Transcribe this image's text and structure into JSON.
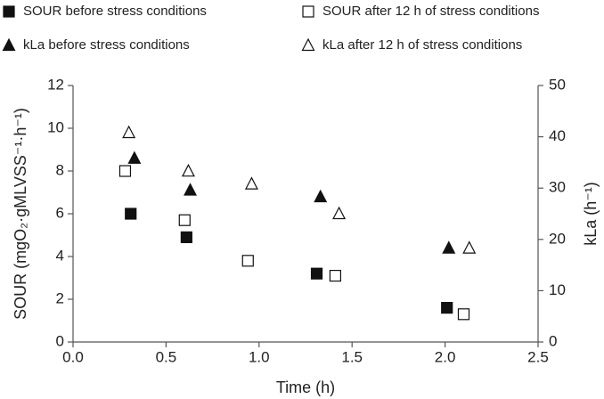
{
  "chart_data": {
    "type": "scatter",
    "x_label": "Time (h)",
    "y_label": "SOUR (mgO₂·gMLVSS⁻¹·h⁻¹)",
    "y2_label": "kLa (h⁻¹)",
    "xlim": [
      0,
      2.5
    ],
    "xticks": [
      {
        "value": 0,
        "label": "0.0"
      },
      0.5,
      {
        "value": 1,
        "label": "1.0"
      },
      1.5,
      {
        "value": 2,
        "label": "2.0"
      },
      2.5
    ],
    "ylim": [
      0,
      12
    ],
    "yticks": [
      0,
      2,
      4,
      6,
      8,
      10,
      12
    ],
    "y2lim": [
      0,
      50
    ],
    "y2ticks": [
      0,
      10,
      20,
      30,
      40,
      50
    ],
    "legend": "top",
    "series": [
      {
        "name": "SOUR before stress conditions",
        "color": "#111111",
        "marker": "square",
        "filled": true,
        "x": [
          0.31,
          0.61,
          1.31,
          2.01
        ],
        "values": [
          6.0,
          4.9,
          3.2,
          1.6
        ]
      },
      {
        "name": "SOUR after 12 h of stress conditions",
        "color": "#111111",
        "marker": "square",
        "filled": false,
        "x": [
          0.28,
          0.6,
          0.94,
          1.41,
          2.1
        ],
        "values": [
          8.0,
          5.7,
          3.8,
          3.1,
          1.3
        ]
      },
      {
        "name": "kLa before stress conditions",
        "color": "#111111",
        "marker": "triangle",
        "filled": true,
        "axis": "y2",
        "x": [
          0.33,
          0.63,
          1.33,
          2.02
        ],
        "values": [
          35.8,
          29.6,
          28.3,
          18.3
        ]
      },
      {
        "name": "kLa after 12 h of stress conditions",
        "color": "#111111",
        "marker": "triangle",
        "filled": false,
        "axis": "y2",
        "x": [
          0.3,
          0.62,
          0.96,
          1.43,
          2.13
        ],
        "values": [
          40.8,
          33.3,
          30.8,
          25.0,
          18.3
        ]
      }
    ]
  }
}
